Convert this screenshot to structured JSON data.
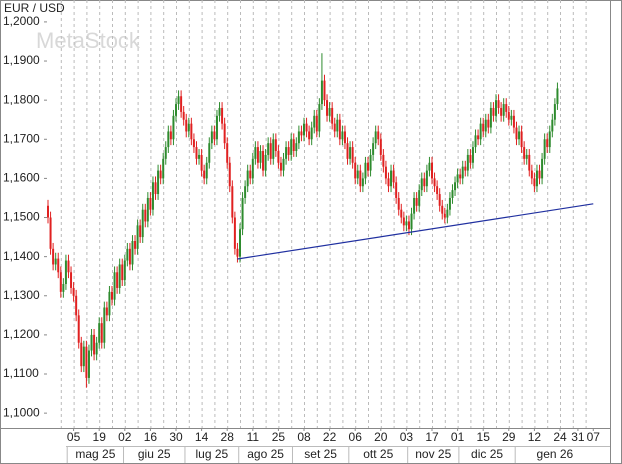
{
  "chart_data": {
    "type": "candlestick",
    "title": "EUR / USD",
    "watermark": "MetaStock",
    "up_color": "#2e8b2e",
    "down_color": "#e02020",
    "xgrid": true,
    "ylim": [
      1.0962,
      1.2056
    ],
    "yticks": [
      {
        "value": 1.1,
        "label": "1,1000"
      },
      {
        "value": 1.11,
        "label": "1,1100"
      },
      {
        "value": 1.12,
        "label": "1,1200"
      },
      {
        "value": 1.13,
        "label": "1,1300"
      },
      {
        "value": 1.14,
        "label": "1,1400"
      },
      {
        "value": 1.15,
        "label": "1,1500"
      },
      {
        "value": 1.16,
        "label": "1,1600"
      },
      {
        "value": 1.17,
        "label": "1,1700"
      },
      {
        "value": 1.18,
        "label": "1,1800"
      },
      {
        "value": 1.19,
        "label": "1,1900"
      },
      {
        "value": 1.2,
        "label": "1,2000"
      }
    ],
    "categories": [
      null,
      null,
      null,
      null,
      null,
      null,
      null,
      null,
      null,
      null,
      "05",
      null,
      null,
      null,
      null,
      null,
      null,
      null,
      null,
      null,
      "19",
      null,
      null,
      null,
      null,
      null,
      null,
      null,
      null,
      null,
      "02",
      null,
      null,
      null,
      null,
      null,
      null,
      null,
      null,
      null,
      "16",
      null,
      null,
      null,
      null,
      null,
      null,
      null,
      null,
      null,
      "30",
      null,
      null,
      null,
      null,
      null,
      null,
      null,
      null,
      null,
      "14",
      null,
      null,
      null,
      null,
      null,
      null,
      null,
      null,
      null,
      "28",
      null,
      null,
      null,
      null,
      null,
      null,
      null,
      null,
      null,
      "11",
      null,
      null,
      null,
      null,
      null,
      null,
      null,
      null,
      null,
      "25",
      null,
      null,
      null,
      null,
      null,
      null,
      null,
      null,
      null,
      "08",
      null,
      null,
      null,
      null,
      null,
      null,
      null,
      null,
      null,
      "22",
      null,
      null,
      null,
      null,
      null,
      null,
      null,
      null,
      null,
      "06",
      null,
      null,
      null,
      null,
      null,
      null,
      null,
      null,
      null,
      "20",
      null,
      null,
      null,
      null,
      null,
      null,
      null,
      null,
      null,
      "03",
      null,
      null,
      null,
      null,
      null,
      null,
      null,
      null,
      null,
      "17",
      null,
      null,
      null,
      null,
      null,
      null,
      null,
      null,
      null,
      "01",
      null,
      null,
      null,
      null,
      null,
      null,
      null,
      null,
      null,
      "15",
      null,
      null,
      null,
      null,
      null,
      null,
      null,
      null,
      null,
      "29",
      null,
      null,
      null,
      null,
      null,
      null,
      null,
      null,
      null,
      "12",
      null,
      null,
      null,
      null,
      null,
      null,
      null,
      null,
      null,
      "24",
      null,
      null,
      null,
      null,
      null,
      null,
      "31",
      null,
      null,
      null,
      null,
      null,
      "07"
    ],
    "months": [
      {
        "label": "mag 25",
        "from": 8,
        "to": 29
      },
      {
        "label": "giu 25",
        "from": 30,
        "to": 53
      },
      {
        "label": "lug 25",
        "from": 54,
        "to": 74
      },
      {
        "label": "ago 25",
        "from": 75,
        "to": 95
      },
      {
        "label": "set 25",
        "from": 96,
        "to": 117
      },
      {
        "label": "ott 25",
        "from": 118,
        "to": 140
      },
      {
        "label": "nov 25",
        "from": 141,
        "to": 160
      },
      {
        "label": "dic 25",
        "from": 161,
        "to": 182
      },
      {
        "label": "gen 26",
        "from": 183,
        "to": 213
      }
    ],
    "open": [
      1.153,
      1.15,
      1.142,
      1.138,
      1.1395,
      1.136,
      1.131,
      1.133,
      1.139,
      1.136,
      1.132,
      1.13,
      1.125,
      1.118,
      1.112,
      1.117,
      1.109,
      1.116,
      1.12,
      1.115,
      1.118,
      1.123,
      1.118,
      1.127,
      1.125,
      1.131,
      1.129,
      1.136,
      1.132,
      1.138,
      1.134,
      1.139,
      1.142,
      1.138,
      1.144,
      1.142,
      1.148,
      1.145,
      1.152,
      1.149,
      1.155,
      1.152,
      1.159,
      1.156,
      1.162,
      1.16,
      1.165,
      1.168,
      1.172,
      1.17,
      1.176,
      1.179,
      1.181,
      1.177,
      1.175,
      1.172,
      1.174,
      1.17,
      1.168,
      1.165,
      1.166,
      1.162,
      1.16,
      1.164,
      1.169,
      1.172,
      1.17,
      1.176,
      1.178,
      1.174,
      1.169,
      1.164,
      1.158,
      1.15,
      1.142,
      1.14,
      1.147,
      1.155,
      1.158,
      1.162,
      1.16,
      1.165,
      1.168,
      1.164,
      1.167,
      1.162,
      1.166,
      1.169,
      1.165,
      1.17,
      1.167,
      1.164,
      1.162,
      1.165,
      1.168,
      1.166,
      1.17,
      1.167,
      1.169,
      1.172,
      1.171,
      1.174,
      1.172,
      1.17,
      1.173,
      1.176,
      1.172,
      1.179,
      1.185,
      1.18,
      1.176,
      1.178,
      1.174,
      1.172,
      1.175,
      1.17,
      1.172,
      1.169,
      1.165,
      1.168,
      1.164,
      1.16,
      1.162,
      1.158,
      1.16,
      1.164,
      1.162,
      1.166,
      1.169,
      1.172,
      1.17,
      1.166,
      1.163,
      1.16,
      1.158,
      1.162,
      1.159,
      1.155,
      1.152,
      1.15,
      1.148,
      1.149,
      1.147,
      1.151,
      1.155,
      1.153,
      1.157,
      1.16,
      1.158,
      1.162,
      1.164,
      1.16,
      1.158,
      1.156,
      1.153,
      1.151,
      1.15,
      1.152,
      1.155,
      1.157,
      1.159,
      1.161,
      1.16,
      1.163,
      1.162,
      1.166,
      1.164,
      1.168,
      1.171,
      1.17,
      1.174,
      1.172,
      1.175,
      1.173,
      1.178,
      1.176,
      1.18,
      1.178,
      1.176,
      1.179,
      1.177,
      1.175,
      1.176,
      1.173,
      1.17,
      1.172,
      1.168,
      1.165,
      1.166,
      1.162,
      1.16,
      1.158,
      1.162,
      1.16,
      1.165,
      1.17,
      1.168,
      1.172,
      1.175,
      1.179,
      null,
      null,
      null,
      null,
      null,
      null,
      null,
      null,
      null,
      null,
      null,
      null,
      null,
      null
    ],
    "high": [
      1.1545,
      1.1515,
      1.1435,
      1.141,
      1.141,
      1.1375,
      1.1345,
      1.1405,
      1.1405,
      1.1375,
      1.1335,
      1.1315,
      1.1265,
      1.1195,
      1.1185,
      1.1185,
      1.1175,
      1.1215,
      1.1215,
      1.1195,
      1.1245,
      1.1245,
      1.1285,
      1.1285,
      1.1325,
      1.1325,
      1.1375,
      1.1375,
      1.1395,
      1.1395,
      1.1405,
      1.1435,
      1.1435,
      1.1455,
      1.1455,
      1.1495,
      1.1495,
      1.1535,
      1.1535,
      1.1565,
      1.1565,
      1.1605,
      1.1605,
      1.1635,
      1.1635,
      1.1665,
      1.1695,
      1.1735,
      1.1735,
      1.1775,
      1.1805,
      1.1825,
      1.1825,
      1.1785,
      1.1765,
      1.1755,
      1.1755,
      1.1715,
      1.1695,
      1.1675,
      1.1675,
      1.1635,
      1.1655,
      1.1705,
      1.1735,
      1.1735,
      1.1775,
      1.1795,
      1.1795,
      1.1755,
      1.1705,
      1.1655,
      1.1595,
      1.1515,
      1.1435,
      1.1485,
      1.1565,
      1.1595,
      1.1635,
      1.1635,
      1.1665,
      1.1695,
      1.1695,
      1.1685,
      1.1685,
      1.1675,
      1.1705,
      1.1705,
      1.1715,
      1.1715,
      1.1685,
      1.1655,
      1.1665,
      1.1695,
      1.1695,
      1.1715,
      1.1715,
      1.1705,
      1.1735,
      1.1735,
      1.1755,
      1.1755,
      1.1735,
      1.1745,
      1.1775,
      1.1775,
      1.1805,
      1.192,
      1.1865,
      1.1815,
      1.1795,
      1.1795,
      1.1755,
      1.1765,
      1.1765,
      1.1735,
      1.1735,
      1.1705,
      1.1695,
      1.1695,
      1.1655,
      1.1635,
      1.1635,
      1.1615,
      1.1655,
      1.1655,
      1.1675,
      1.1705,
      1.1735,
      1.1735,
      1.1715,
      1.1675,
      1.1645,
      1.1615,
      1.1635,
      1.1635,
      1.1605,
      1.1565,
      1.1535,
      1.1515,
      1.1505,
      1.1505,
      1.1525,
      1.1565,
      1.1565,
      1.1585,
      1.1615,
      1.1615,
      1.1635,
      1.1655,
      1.1655,
      1.1615,
      1.1595,
      1.1575,
      1.1545,
      1.1525,
      1.1535,
      1.1565,
      1.1585,
      1.1605,
      1.1625,
      1.1625,
      1.1645,
      1.1645,
      1.1675,
      1.1675,
      1.1695,
      1.1725,
      1.1725,
      1.1755,
      1.1755,
      1.1765,
      1.1765,
      1.1795,
      1.1795,
      1.1815,
      1.1815,
      1.1795,
      1.1805,
      1.1805,
      1.1785,
      1.1775,
      1.1775,
      1.1745,
      1.1735,
      1.1735,
      1.1695,
      1.1675,
      1.1675,
      1.1635,
      1.1615,
      1.1635,
      1.1635,
      1.1665,
      1.1715,
      1.1715,
      1.1735,
      1.1765,
      1.1805,
      1.1845,
      null,
      null,
      null,
      null,
      null,
      null,
      null,
      null,
      null,
      null,
      null,
      null,
      null,
      null
    ],
    "low": [
      1.1485,
      1.1405,
      1.1365,
      1.1365,
      1.1345,
      1.1295,
      1.1295,
      1.1315,
      1.1345,
      1.1305,
      1.1285,
      1.1235,
      1.1165,
      1.1105,
      1.1105,
      1.1065,
      1.1075,
      1.1145,
      1.1135,
      1.1135,
      1.1165,
      1.1165,
      1.1165,
      1.1235,
      1.1235,
      1.1275,
      1.1275,
      1.1305,
      1.1305,
      1.1325,
      1.1325,
      1.1375,
      1.1365,
      1.1365,
      1.1405,
      1.1405,
      1.1435,
      1.1435,
      1.1475,
      1.1475,
      1.1505,
      1.1505,
      1.1545,
      1.1545,
      1.1585,
      1.1585,
      1.1635,
      1.1665,
      1.1685,
      1.1685,
      1.1745,
      1.1775,
      1.1755,
      1.1735,
      1.1705,
      1.1705,
      1.1685,
      1.1665,
      1.1635,
      1.1635,
      1.1605,
      1.1585,
      1.1585,
      1.1625,
      1.1675,
      1.1685,
      1.1685,
      1.1745,
      1.1725,
      1.1675,
      1.1625,
      1.1565,
      1.1485,
      1.1405,
      1.1385,
      1.1385,
      1.1455,
      1.1535,
      1.1565,
      1.1585,
      1.1585,
      1.1635,
      1.1625,
      1.1625,
      1.1605,
      1.1605,
      1.1645,
      1.1635,
      1.1635,
      1.1655,
      1.1625,
      1.1605,
      1.1605,
      1.1635,
      1.1645,
      1.1645,
      1.1655,
      1.1655,
      1.1675,
      1.1695,
      1.1695,
      1.1705,
      1.1685,
      1.1685,
      1.1715,
      1.1705,
      1.1705,
      1.1775,
      1.1785,
      1.1745,
      1.1745,
      1.1725,
      1.1705,
      1.1705,
      1.1685,
      1.1685,
      1.1675,
      1.1635,
      1.1635,
      1.1625,
      1.1585,
      1.1585,
      1.1565,
      1.1565,
      1.1585,
      1.1605,
      1.1605,
      1.1645,
      1.1675,
      1.1685,
      1.1645,
      1.1615,
      1.1585,
      1.1565,
      1.1565,
      1.1575,
      1.1535,
      1.1505,
      1.1485,
      1.1465,
      1.1465,
      1.1455,
      1.1455,
      1.1495,
      1.1515,
      1.1515,
      1.1555,
      1.1565,
      1.1565,
      1.1605,
      1.1585,
      1.1565,
      1.1545,
      1.1515,
      1.1495,
      1.1485,
      1.1485,
      1.1505,
      1.1535,
      1.1555,
      1.1575,
      1.1585,
      1.1585,
      1.1605,
      1.1605,
      1.1625,
      1.1625,
      1.1665,
      1.1685,
      1.1685,
      1.1705,
      1.1705,
      1.1715,
      1.1715,
      1.1745,
      1.1745,
      1.1765,
      1.1745,
      1.1745,
      1.1755,
      1.1735,
      1.1735,
      1.1715,
      1.1685,
      1.1685,
      1.1665,
      1.1635,
      1.1635,
      1.1605,
      1.1585,
      1.1565,
      1.1565,
      1.1585,
      1.1585,
      1.1635,
      1.1665,
      1.1665,
      1.1705,
      1.1735,
      1.1775,
      null,
      null,
      null,
      null,
      null,
      null,
      null,
      null,
      null,
      null,
      null,
      null,
      null,
      null
    ],
    "close": [
      1.15,
      1.142,
      1.138,
      1.1395,
      1.136,
      1.131,
      1.133,
      1.139,
      1.136,
      1.132,
      1.13,
      1.125,
      1.118,
      1.112,
      1.117,
      1.109,
      1.116,
      1.12,
      1.115,
      1.118,
      1.123,
      1.118,
      1.127,
      1.125,
      1.131,
      1.129,
      1.136,
      1.132,
      1.138,
      1.134,
      1.139,
      1.142,
      1.138,
      1.144,
      1.142,
      1.148,
      1.145,
      1.152,
      1.149,
      1.155,
      1.152,
      1.159,
      1.156,
      1.162,
      1.16,
      1.165,
      1.168,
      1.172,
      1.17,
      1.176,
      1.179,
      1.181,
      1.177,
      1.175,
      1.172,
      1.174,
      1.17,
      1.168,
      1.165,
      1.166,
      1.162,
      1.16,
      1.164,
      1.169,
      1.172,
      1.17,
      1.176,
      1.178,
      1.174,
      1.169,
      1.164,
      1.158,
      1.15,
      1.142,
      1.14,
      1.147,
      1.155,
      1.158,
      1.162,
      1.16,
      1.165,
      1.168,
      1.164,
      1.167,
      1.162,
      1.166,
      1.169,
      1.165,
      1.17,
      1.167,
      1.164,
      1.162,
      1.165,
      1.168,
      1.166,
      1.17,
      1.167,
      1.169,
      1.172,
      1.171,
      1.174,
      1.172,
      1.17,
      1.173,
      1.176,
      1.172,
      1.179,
      1.185,
      1.18,
      1.176,
      1.178,
      1.174,
      1.172,
      1.175,
      1.17,
      1.172,
      1.169,
      1.165,
      1.168,
      1.164,
      1.16,
      1.162,
      1.158,
      1.16,
      1.164,
      1.162,
      1.166,
      1.169,
      1.172,
      1.17,
      1.166,
      1.163,
      1.16,
      1.158,
      1.162,
      1.159,
      1.155,
      1.152,
      1.15,
      1.148,
      1.149,
      1.147,
      1.151,
      1.155,
      1.153,
      1.157,
      1.16,
      1.158,
      1.162,
      1.164,
      1.16,
      1.158,
      1.156,
      1.153,
      1.151,
      1.15,
      1.152,
      1.155,
      1.157,
      1.159,
      1.161,
      1.16,
      1.163,
      1.162,
      1.166,
      1.164,
      1.168,
      1.171,
      1.17,
      1.174,
      1.172,
      1.175,
      1.173,
      1.178,
      1.176,
      1.18,
      1.178,
      1.176,
      1.179,
      1.177,
      1.175,
      1.176,
      1.173,
      1.17,
      1.172,
      1.168,
      1.165,
      1.166,
      1.162,
      1.16,
      1.158,
      1.162,
      1.16,
      1.165,
      1.17,
      1.168,
      1.172,
      1.175,
      1.179,
      1.183,
      null,
      null,
      null,
      null,
      null,
      null,
      null,
      null,
      null,
      null,
      null,
      null,
      null,
      null
    ],
    "trend_line": {
      "from": [
        74,
        1.1394
      ],
      "to": [
        213,
        1.1535
      ],
      "color": "#2030a0"
    }
  }
}
